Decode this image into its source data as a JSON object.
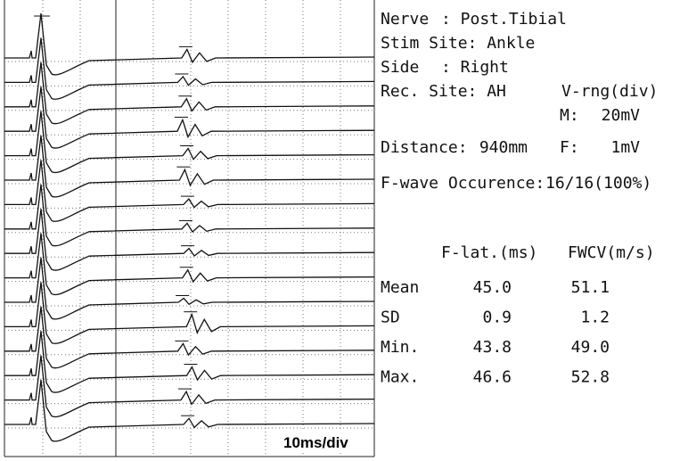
{
  "scale_label": "10ms/div",
  "info": {
    "nerve": {
      "label": "Nerve",
      "value": ": Post.Tibial"
    },
    "stim_site": {
      "label": "Stim Site: Ankle"
    },
    "side": {
      "label": "Side",
      "value": ": Right"
    },
    "rec_site": {
      "label": "Rec. Site: AH"
    },
    "v_range": {
      "label": "V-rng(div)",
      "m_label": "M:",
      "m_value": "20mV",
      "f_label": "F:",
      "f_value": "1mV"
    },
    "distance": {
      "label": "Distance:",
      "value": "940mm"
    },
    "occurrence": {
      "label": "F-wave Occurence:",
      "value": "16/16(100%)"
    }
  },
  "table": {
    "columns": [
      "F-lat.(ms)",
      "FWCV(m/s)"
    ],
    "rows": [
      {
        "label": "Mean",
        "values": [
          45.0,
          51.1
        ],
        "value_labels": [
          "45.0",
          "51.1"
        ]
      },
      {
        "label": "SD",
        "values": [
          0.9,
          1.2
        ],
        "value_labels": [
          "0.9",
          "1.2"
        ]
      },
      {
        "label": "Min.",
        "values": [
          43.8,
          49.0
        ],
        "value_labels": [
          "43.8",
          "49.0"
        ]
      },
      {
        "label": "Max.",
        "values": [
          46.6,
          52.8
        ],
        "value_labels": [
          "46.6",
          "52.8"
        ]
      }
    ]
  }
}
